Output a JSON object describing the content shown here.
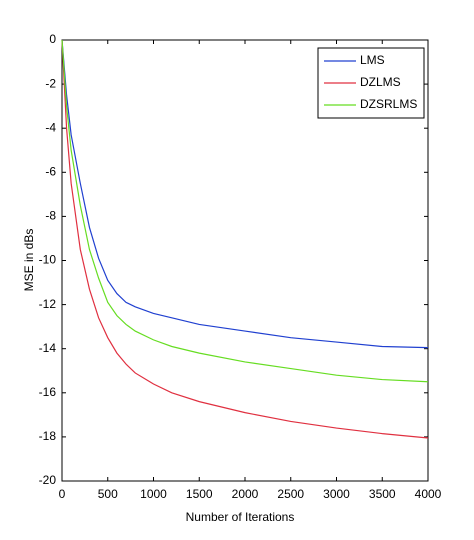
{
  "chart_data": {
    "type": "line",
    "x_label": "Number of Iterations",
    "y_label": "MSE in dBs",
    "x": [
      0,
      50,
      100,
      200,
      300,
      400,
      500,
      600,
      700,
      800,
      1000,
      1200,
      1500,
      2000,
      2500,
      3000,
      3500,
      4000
    ],
    "series": [
      {
        "name": "LMS",
        "color": "#2040d0",
        "values": [
          0,
          -2.5,
          -4.3,
          -6.5,
          -8.5,
          -9.9,
          -10.9,
          -11.5,
          -11.9,
          -12.1,
          -12.4,
          -12.6,
          -12.9,
          -13.2,
          -13.5,
          -13.7,
          -13.9,
          -13.95
        ]
      },
      {
        "name": "DZLMS",
        "color": "#e03040",
        "values": [
          0,
          -4,
          -6.5,
          -9.5,
          -11.3,
          -12.6,
          -13.5,
          -14.2,
          -14.7,
          -15.1,
          -15.6,
          -16.0,
          -16.4,
          -16.9,
          -17.3,
          -17.6,
          -17.85,
          -18.05
        ]
      },
      {
        "name": "DZSRLMS",
        "color": "#66dd22",
        "values": [
          0,
          -3,
          -5,
          -7.5,
          -9.5,
          -10.8,
          -11.9,
          -12.5,
          -12.9,
          -13.2,
          -13.6,
          -13.9,
          -14.2,
          -14.6,
          -14.9,
          -15.2,
          -15.4,
          -15.5
        ]
      }
    ],
    "xlim": [
      0,
      4000
    ],
    "xticks": [
      0,
      500,
      1000,
      1500,
      2000,
      2500,
      3000,
      3500,
      4000
    ],
    "ylim": [
      -20,
      0
    ],
    "yticks": [
      -20,
      -18,
      -16,
      -14,
      -12,
      -10,
      -8,
      -6,
      -4,
      -2,
      0
    ],
    "grid": false,
    "legend": "top-right"
  }
}
